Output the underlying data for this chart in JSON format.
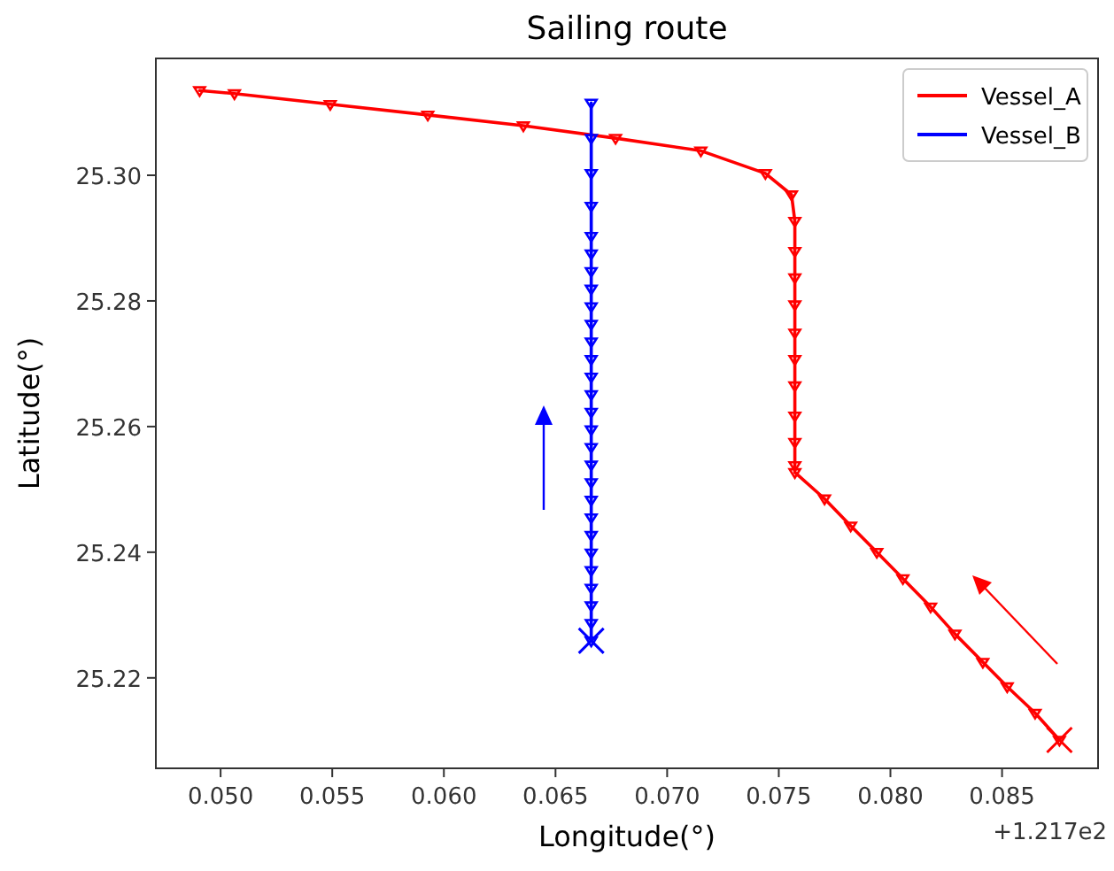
{
  "chart_data": {
    "type": "line",
    "title": "Sailing route",
    "xlabel": "Longitude(°)",
    "ylabel": "Latitude(°)",
    "annotations": [
      "+1.217e2"
    ],
    "xlim": [
      0.0471,
      0.0893
    ],
    "ylim": [
      25.2056,
      25.3186
    ],
    "xticks": [
      {
        "value": 0.05,
        "label": "0.050"
      },
      {
        "value": 0.055,
        "label": "0.055"
      },
      {
        "value": 0.06,
        "label": "0.060"
      },
      {
        "value": 0.065,
        "label": "0.065"
      },
      {
        "value": 0.07,
        "label": "0.070"
      },
      {
        "value": 0.075,
        "label": "0.075"
      },
      {
        "value": 0.08,
        "label": "0.080"
      },
      {
        "value": 0.085,
        "label": "0.085"
      }
    ],
    "yticks": [
      {
        "value": 25.22,
        "label": "25.22"
      },
      {
        "value": 25.24,
        "label": "25.24"
      },
      {
        "value": 25.26,
        "label": "25.26"
      },
      {
        "value": 25.28,
        "label": "25.28"
      },
      {
        "value": 25.3,
        "label": "25.30"
      }
    ],
    "grid": false,
    "legend": "top right",
    "series": [
      {
        "name": "Vessel_A",
        "color": "#ff0000",
        "type": "line",
        "marker": "triangle",
        "x": [
          0.04906,
          0.05062,
          0.05491,
          0.05928,
          0.06356,
          0.06769,
          0.07151,
          0.0744,
          0.07557,
          0.07572,
          0.07572,
          0.07572,
          0.07572,
          0.07572,
          0.07572,
          0.07572,
          0.07572,
          0.07572,
          0.07572,
          0.07572,
          0.07705,
          0.07822,
          0.07939,
          0.08056,
          0.0818,
          0.08289,
          0.08414,
          0.08523,
          0.08648,
          0.08757
        ],
        "values": [
          25.3135,
          25.313,
          25.3113,
          25.3096,
          25.3079,
          25.3059,
          25.3039,
          25.3003,
          25.2969,
          25.2927,
          25.2879,
          25.2837,
          25.2794,
          25.2749,
          25.2707,
          25.2665,
          25.2617,
          25.2575,
          25.2538,
          25.2527,
          25.2485,
          25.2442,
          25.24,
          25.2358,
          25.2313,
          25.227,
          25.2225,
          25.2186,
          25.2144,
          25.2101
        ]
      },
      {
        "name": "Vessel_B",
        "color": "#0000ff",
        "type": "line",
        "marker": "triangle",
        "x": [
          0.0666,
          0.0666,
          0.0666,
          0.0666,
          0.0666,
          0.0666,
          0.0666,
          0.0666,
          0.0666,
          0.0666,
          0.0666,
          0.0666,
          0.0666,
          0.0666,
          0.0666,
          0.0666,
          0.0666,
          0.0666,
          0.0666,
          0.0666,
          0.0666,
          0.0666,
          0.0666,
          0.0666,
          0.0666,
          0.0666,
          0.0666,
          0.0666
        ],
        "values": [
          25.2259,
          25.2287,
          25.2315,
          25.2343,
          25.2371,
          25.2399,
          25.2427,
          25.2455,
          25.2483,
          25.2511,
          25.2539,
          25.2567,
          25.2595,
          25.2623,
          25.2651,
          25.2679,
          25.2707,
          25.2735,
          25.2763,
          25.2791,
          25.2819,
          25.2847,
          25.2875,
          25.2903,
          25.2951,
          25.3003,
          25.3059,
          25.3115
        ]
      },
      {
        "color": "#ff0000",
        "type": "scatter",
        "marker": "cross",
        "x": [
          0.08757
        ],
        "values": [
          25.2101
        ]
      },
      {
        "color": "#0000ff",
        "type": "scatter",
        "marker": "cross",
        "x": [
          0.0666
        ],
        "values": [
          25.2259
        ]
      }
    ]
  }
}
